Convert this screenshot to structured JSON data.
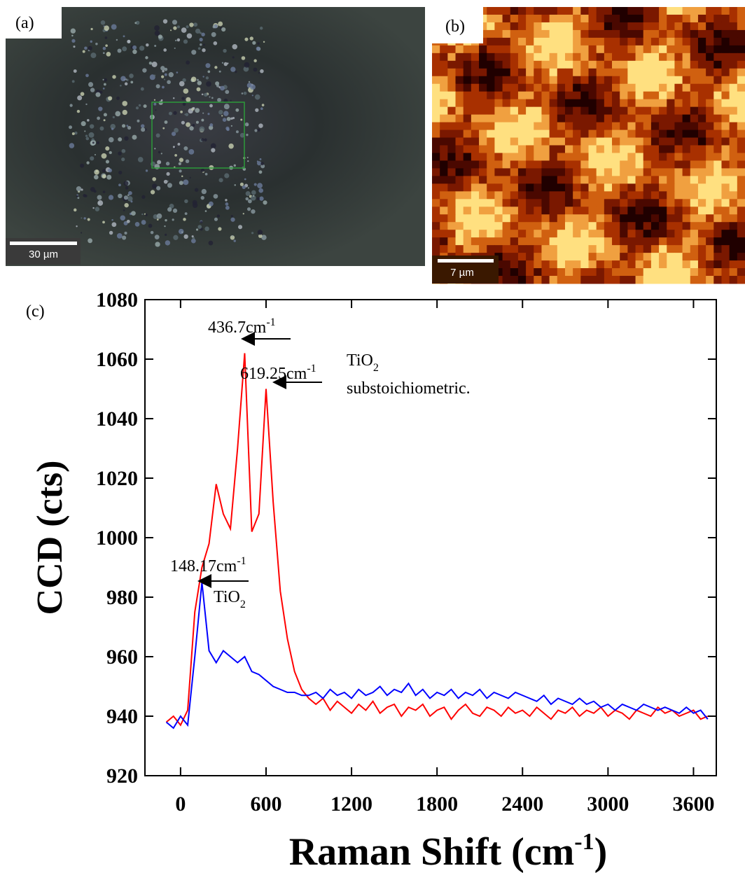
{
  "panels": [
    {
      "label": "(a)",
      "scale_bar": "30 µm"
    },
    {
      "label": "(b)",
      "scale_bar": "7 µm"
    }
  ],
  "chart_data": {
    "type": "line",
    "panel_label": "(c)",
    "x_label": {
      "text": "Raman Shift (cm",
      "sup": "-1",
      "tail": ")"
    },
    "y_label": "CCD (cts)",
    "x": [
      -100,
      -50,
      0,
      50,
      100,
      150,
      200,
      250,
      300,
      350,
      400,
      450,
      500,
      550,
      600,
      650,
      700,
      750,
      800,
      850,
      900,
      950,
      1000,
      1050,
      1100,
      1150,
      1200,
      1250,
      1300,
      1350,
      1400,
      1450,
      1500,
      1550,
      1600,
      1650,
      1700,
      1750,
      1800,
      1850,
      1900,
      1950,
      2000,
      2050,
      2100,
      2150,
      2200,
      2250,
      2300,
      2350,
      2400,
      2450,
      2500,
      2550,
      2600,
      2650,
      2700,
      2750,
      2800,
      2850,
      2900,
      2950,
      3000,
      3050,
      3100,
      3150,
      3200,
      3250,
      3300,
      3350,
      3400,
      3450,
      3500,
      3550,
      3600,
      3650,
      3700
    ],
    "series": [
      {
        "color": "#ff0000",
        "values": [
          938,
          940,
          937,
          942,
          975,
          990,
          998,
          1018,
          1008,
          1003,
          1030,
          1062,
          1002,
          1008,
          1050,
          1012,
          982,
          966,
          955,
          949,
          946,
          944,
          946,
          942,
          945,
          943,
          941,
          944,
          942,
          945,
          941,
          943,
          944,
          940,
          943,
          942,
          944,
          940,
          942,
          943,
          939,
          942,
          944,
          941,
          940,
          943,
          942,
          940,
          943,
          941,
          942,
          940,
          943,
          941,
          939,
          942,
          941,
          943,
          940,
          942,
          941,
          943,
          940,
          942,
          941,
          939,
          942,
          941,
          940,
          943,
          941,
          942,
          940,
          941,
          942,
          939,
          940
        ]
      },
      {
        "color": "#0000ff",
        "values": [
          938,
          936,
          940,
          937,
          960,
          985,
          962,
          958,
          962,
          960,
          958,
          960,
          955,
          954,
          952,
          950,
          949,
          948,
          948,
          947,
          947,
          948,
          946,
          949,
          947,
          948,
          946,
          949,
          947,
          948,
          950,
          947,
          949,
          948,
          951,
          947,
          949,
          946,
          948,
          947,
          949,
          946,
          948,
          947,
          949,
          946,
          948,
          947,
          946,
          948,
          947,
          946,
          945,
          947,
          944,
          946,
          945,
          944,
          946,
          944,
          945,
          943,
          944,
          942,
          944,
          943,
          942,
          944,
          943,
          942,
          943,
          942,
          941,
          943,
          941,
          942,
          939
        ]
      }
    ],
    "xlim": [
      -250,
      3760
    ],
    "ylim": [
      920,
      1080
    ],
    "xticks": [
      0,
      600,
      1200,
      1800,
      2400,
      3000,
      3600
    ],
    "yticks": [
      920,
      940,
      960,
      980,
      1000,
      1020,
      1040,
      1060,
      1080
    ],
    "annotations": [
      {
        "text": "436.7cm",
        "sup": "-1"
      },
      {
        "text": "619.25cm",
        "sup": "-1"
      },
      {
        "text": "TiO",
        "sub": "2"
      },
      {
        "text": "substoichiometric."
      },
      {
        "text": "148.17cm",
        "sup": "-1"
      },
      {
        "text": "TiO",
        "sub": "2"
      }
    ]
  }
}
